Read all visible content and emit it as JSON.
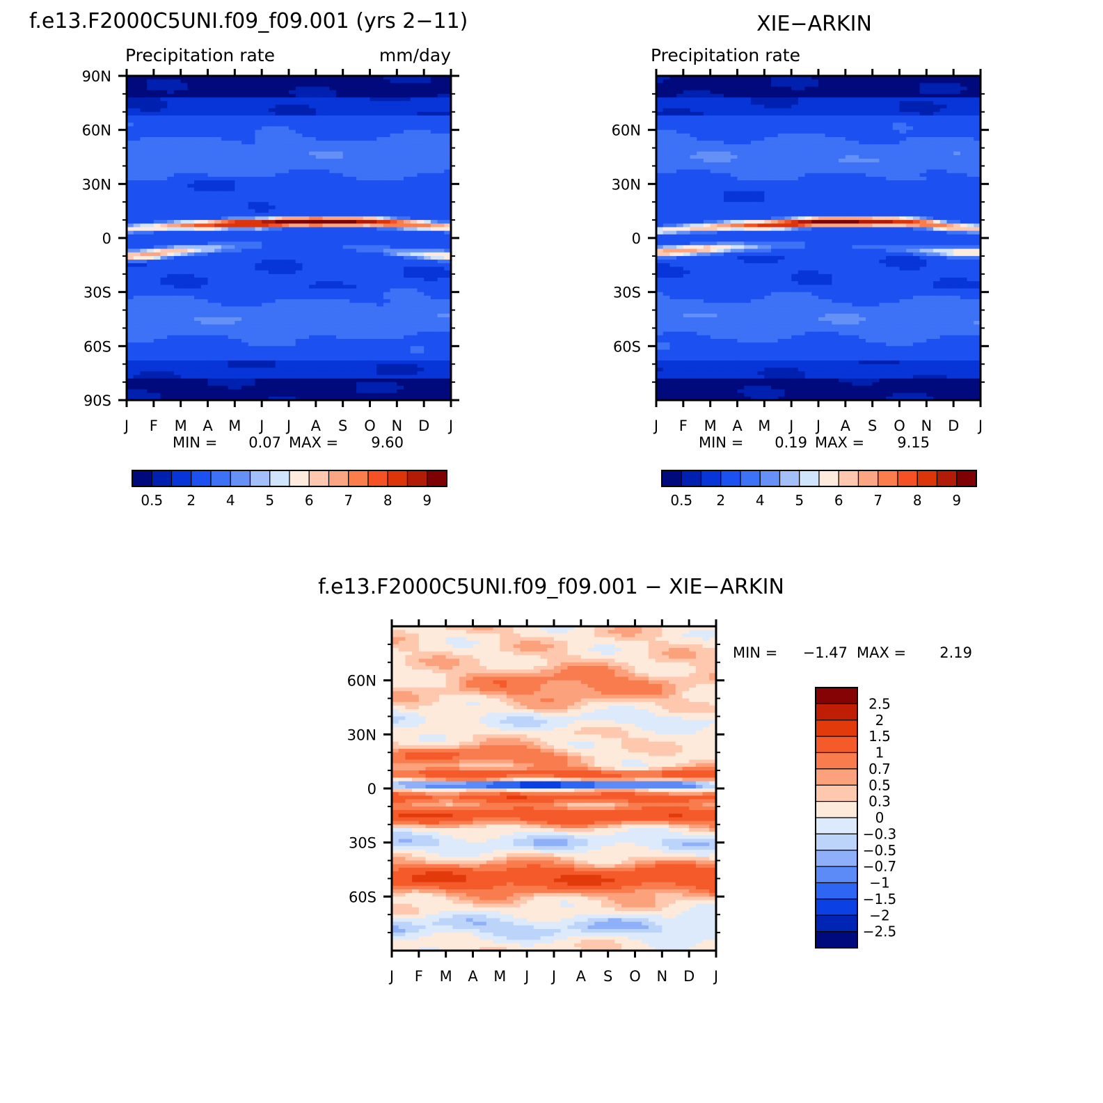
{
  "colors": {
    "seq_scale": [
      "#000a7c",
      "#0020b0",
      "#0735d8",
      "#1c50f0",
      "#3d71f6",
      "#6591f7",
      "#a2bff9",
      "#d0e4fb",
      "#feebde",
      "#fdc7b0",
      "#fca582",
      "#fb7d4b",
      "#f65124",
      "#dd3409",
      "#b21b05",
      "#7e0204"
    ],
    "diff_scale": [
      "#000a7c",
      "#0024b4",
      "#0a40e4",
      "#2d66f2",
      "#5c8af6",
      "#8fb0f8",
      "#bdd4fa",
      "#dceafc",
      "#feeadb",
      "#fdc8ad",
      "#fba27d",
      "#f97c4e",
      "#f55a2a",
      "#e33a0c",
      "#c01d05",
      "#850205"
    ]
  },
  "panels": {
    "model": {
      "title": "f.e13.F2000C5UNI.f09_f09.001 (yrs 2−11)",
      "left_label": "Precipitation rate",
      "right_label": "mm/day",
      "min_label": "MIN =",
      "min_value": "0.07",
      "max_label": "MAX =",
      "max_value": "9.60",
      "colorbar_labels": [
        "0.5",
        "2",
        "4",
        "5",
        "6",
        "7",
        "8",
        "9"
      ]
    },
    "obs": {
      "title": "XIE−ARKIN",
      "left_label": "Precipitation rate",
      "min_label": "MIN =",
      "min_value": "0.19",
      "max_label": "MAX =",
      "max_value": "9.15",
      "colorbar_labels": [
        "0.5",
        "2",
        "4",
        "5",
        "6",
        "7",
        "8",
        "9"
      ]
    },
    "diff": {
      "title": "f.e13.F2000C5UNI.f09_f09.001 − XIE−ARKIN",
      "min_label": "MIN =",
      "min_value": "−1.47",
      "max_label": "MAX =",
      "max_value": "2.19",
      "colorbar_labels": [
        "2.5",
        "2",
        "1.5",
        "1",
        "0.7",
        "0.5",
        "0.3",
        "0",
        "−0.3",
        "−0.5",
        "−0.7",
        "−1",
        "−1.5",
        "−2",
        "−2.5"
      ]
    }
  },
  "chart_data": [
    {
      "type": "heatmap",
      "title": "f.e13.F2000C5UNI.f09_f09.001 (yrs 2−11)",
      "subtitle": "Precipitation rate",
      "units": "mm/day",
      "x_ticks": [
        "J",
        "F",
        "M",
        "A",
        "M",
        "J",
        "J",
        "A",
        "S",
        "O",
        "N",
        "D",
        "J"
      ],
      "y_ticks": [
        "90N",
        "60N",
        "30N",
        "0",
        "30S",
        "60S",
        "90S"
      ],
      "ylim": [
        -90,
        90
      ],
      "min": 0.07,
      "max": 9.6,
      "levels": [
        0.5,
        1,
        2,
        3,
        4,
        4.5,
        5,
        5.5,
        6,
        6.5,
        7,
        7.5,
        8,
        8.5,
        9
      ],
      "itcz_lat_by_month": [
        5,
        6,
        7,
        7,
        8,
        8,
        9,
        9,
        9,
        9,
        8,
        7,
        6
      ],
      "itcz_peak_by_month": [
        5.8,
        6.0,
        7.0,
        7.8,
        8.6,
        9.1,
        9.4,
        9.6,
        9.3,
        8.7,
        8.0,
        7.2,
        6.4
      ],
      "south_band_lat_by_month": [
        -10,
        -9,
        -7,
        -6,
        -5,
        -4,
        -4,
        -4,
        -5,
        -6,
        -8,
        -9,
        -10
      ],
      "south_band_peak_by_month": [
        6.5,
        6.8,
        6.2,
        5.0,
        4.0,
        3.2,
        2.8,
        2.8,
        3.0,
        3.6,
        4.6,
        5.6,
        6.3
      ]
    },
    {
      "type": "heatmap",
      "title": "XIE−ARKIN",
      "subtitle": "Precipitation rate",
      "x_ticks": [
        "J",
        "F",
        "M",
        "A",
        "M",
        "J",
        "J",
        "A",
        "S",
        "O",
        "N",
        "D",
        "J"
      ],
      "y_ticks": [
        "60N",
        "30N",
        "0",
        "30S",
        "60S"
      ],
      "ylim": [
        -90,
        90
      ],
      "min": 0.19,
      "max": 9.15,
      "levels": [
        0.5,
        1,
        2,
        3,
        4,
        4.5,
        5,
        5.5,
        6,
        6.5,
        7,
        7.5,
        8,
        8.5,
        9
      ],
      "itcz_lat_by_month": [
        4,
        5,
        6,
        7,
        7,
        8,
        9,
        9,
        9,
        9,
        8,
        6,
        5
      ],
      "itcz_peak_by_month": [
        5.6,
        5.9,
        6.6,
        7.3,
        8.2,
        8.8,
        9.1,
        9.15,
        8.9,
        8.4,
        7.7,
        6.9,
        6.1
      ],
      "south_band_lat_by_month": [
        -8,
        -7,
        -6,
        -5,
        -5,
        -4,
        -4,
        -4,
        -5,
        -6,
        -7,
        -8,
        -8
      ],
      "south_band_peak_by_month": [
        6.6,
        6.9,
        6.4,
        5.2,
        4.2,
        3.4,
        3.0,
        3.0,
        3.2,
        3.8,
        4.8,
        5.8,
        6.4
      ]
    },
    {
      "type": "heatmap",
      "title": "f.e13.F2000C5UNI.f09_f09.001 − XIE−ARKIN",
      "x_ticks": [
        "J",
        "F",
        "M",
        "A",
        "M",
        "J",
        "J",
        "A",
        "S",
        "O",
        "N",
        "D",
        "J"
      ],
      "y_ticks": [
        "60N",
        "30N",
        "0",
        "30S",
        "60S"
      ],
      "ylim": [
        -90,
        90
      ],
      "min": -1.47,
      "max": 2.19,
      "levels": [
        -2.5,
        -2,
        -1.5,
        -1,
        -0.7,
        -0.5,
        -0.3,
        0,
        0.3,
        0.5,
        0.7,
        1,
        1.5,
        2,
        2.5
      ]
    }
  ]
}
